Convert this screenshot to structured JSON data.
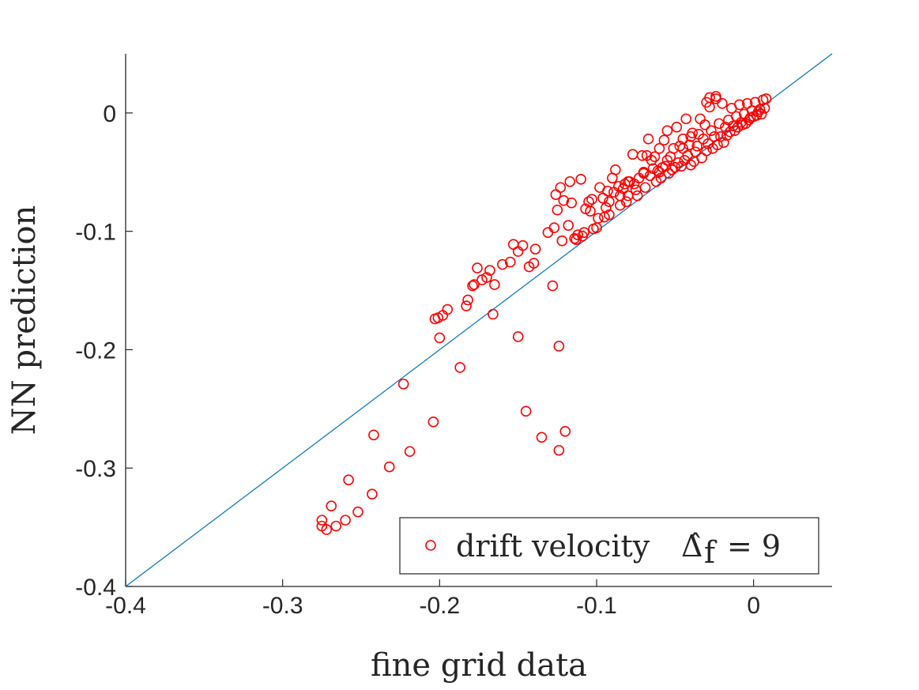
{
  "chart_data": {
    "type": "scatter",
    "title": "",
    "xlabel": "fine grid data",
    "ylabel": "NN prediction",
    "xlim": [
      -0.4,
      0.05
    ],
    "ylim": [
      -0.4,
      0.05
    ],
    "xticks": [
      -0.4,
      -0.3,
      -0.2,
      -0.1,
      0
    ],
    "xtick_labels": [
      "-0.4",
      "-0.3",
      "-0.2",
      "-0.1",
      "0"
    ],
    "yticks": [
      -0.4,
      -0.3,
      -0.2,
      -0.1,
      0
    ],
    "ytick_labels": [
      "-0.4",
      "-0.3",
      "-0.2",
      "-0.1",
      "0"
    ],
    "grid": false,
    "legend": {
      "location": "bottom-right",
      "label": "drift velocity",
      "symbol": "Δ̂",
      "subscript": "f",
      "equation": "= 9"
    },
    "reference_line": {
      "name": "y = x",
      "color": "#0072BD",
      "x": [
        -0.4,
        0.05
      ],
      "y": [
        -0.4,
        0.05
      ]
    },
    "marker_color": "#FF0000",
    "series": [
      {
        "name": "drift velocity Δ̂f = 9",
        "points": [
          [
            -0.275,
            -0.344
          ],
          [
            -0.275,
            -0.349
          ],
          [
            -0.272,
            -0.352
          ],
          [
            -0.269,
            -0.332
          ],
          [
            -0.266,
            -0.349
          ],
          [
            -0.26,
            -0.344
          ],
          [
            -0.258,
            -0.31
          ],
          [
            -0.252,
            -0.337
          ],
          [
            -0.243,
            -0.322
          ],
          [
            -0.242,
            -0.272
          ],
          [
            -0.232,
            -0.299
          ],
          [
            -0.223,
            -0.229
          ],
          [
            -0.219,
            -0.286
          ],
          [
            -0.204,
            -0.261
          ],
          [
            -0.203,
            -0.174
          ],
          [
            -0.201,
            -0.173
          ],
          [
            -0.2,
            -0.19
          ],
          [
            -0.198,
            -0.171
          ],
          [
            -0.195,
            -0.166
          ],
          [
            -0.187,
            -0.215
          ],
          [
            -0.183,
            -0.163
          ],
          [
            -0.182,
            -0.158
          ],
          [
            -0.179,
            -0.146
          ],
          [
            -0.178,
            -0.145
          ],
          [
            -0.176,
            -0.131
          ],
          [
            -0.173,
            -0.141
          ],
          [
            -0.17,
            -0.139
          ],
          [
            -0.168,
            -0.133
          ],
          [
            -0.166,
            -0.17
          ],
          [
            -0.165,
            -0.145
          ],
          [
            -0.16,
            -0.128
          ],
          [
            -0.155,
            -0.126
          ],
          [
            -0.153,
            -0.111
          ],
          [
            -0.15,
            -0.189
          ],
          [
            -0.15,
            -0.117
          ],
          [
            -0.147,
            -0.112
          ],
          [
            -0.145,
            -0.252
          ],
          [
            -0.143,
            -0.13
          ],
          [
            -0.14,
            -0.127
          ],
          [
            -0.139,
            -0.115
          ],
          [
            -0.135,
            -0.274
          ],
          [
            -0.131,
            -0.101
          ],
          [
            -0.128,
            -0.146
          ],
          [
            -0.127,
            -0.097
          ],
          [
            -0.126,
            -0.069
          ],
          [
            -0.125,
            -0.082
          ],
          [
            -0.124,
            -0.197
          ],
          [
            -0.124,
            -0.285
          ],
          [
            -0.123,
            -0.063
          ],
          [
            -0.122,
            -0.108
          ],
          [
            -0.121,
            -0.074
          ],
          [
            -0.12,
            -0.269
          ],
          [
            -0.118,
            -0.095
          ],
          [
            -0.117,
            -0.058
          ],
          [
            -0.116,
            -0.076
          ],
          [
            -0.114,
            -0.106
          ],
          [
            -0.113,
            -0.107
          ],
          [
            -0.112,
            -0.103
          ],
          [
            -0.11,
            -0.056
          ],
          [
            -0.109,
            -0.104
          ],
          [
            -0.108,
            -0.101
          ],
          [
            -0.107,
            -0.081
          ],
          [
            -0.105,
            -0.075
          ],
          [
            -0.104,
            -0.083
          ],
          [
            -0.103,
            -0.073
          ],
          [
            -0.102,
            -0.098
          ],
          [
            -0.1,
            -0.097
          ],
          [
            -0.099,
            -0.089
          ],
          [
            -0.098,
            -0.063
          ],
          [
            -0.096,
            -0.072
          ],
          [
            -0.095,
            -0.088
          ],
          [
            -0.094,
            -0.08
          ],
          [
            -0.093,
            -0.066
          ],
          [
            -0.092,
            -0.075
          ],
          [
            -0.09,
            -0.055
          ],
          [
            -0.089,
            -0.067
          ],
          [
            -0.088,
            -0.048
          ],
          [
            -0.086,
            -0.062
          ],
          [
            -0.085,
            -0.078
          ],
          [
            -0.083,
            -0.064
          ],
          [
            -0.082,
            -0.06
          ],
          [
            -0.081,
            -0.075
          ],
          [
            -0.08,
            -0.058
          ],
          [
            -0.079,
            -0.058
          ],
          [
            -0.077,
            -0.035
          ],
          [
            -0.076,
            -0.06
          ],
          [
            -0.074,
            -0.07
          ],
          [
            -0.073,
            -0.055
          ],
          [
            -0.071,
            -0.036
          ],
          [
            -0.07,
            -0.051
          ],
          [
            -0.069,
            -0.063
          ],
          [
            -0.068,
            -0.036
          ],
          [
            -0.067,
            -0.022
          ],
          [
            -0.066,
            -0.053
          ],
          [
            -0.065,
            -0.04
          ],
          [
            -0.064,
            -0.047
          ],
          [
            -0.063,
            -0.037
          ],
          [
            -0.062,
            -0.058
          ],
          [
            -0.061,
            -0.049
          ],
          [
            -0.06,
            -0.03
          ],
          [
            -0.059,
            -0.055
          ],
          [
            -0.058,
            -0.046
          ],
          [
            -0.057,
            -0.023
          ],
          [
            -0.056,
            -0.045
          ],
          [
            -0.055,
            -0.015
          ],
          [
            -0.054,
            -0.051
          ],
          [
            -0.053,
            -0.037
          ],
          [
            -0.052,
            -0.048
          ],
          [
            -0.051,
            -0.03
          ],
          [
            -0.05,
            -0.046
          ],
          [
            -0.049,
            -0.012
          ],
          [
            -0.048,
            -0.042
          ],
          [
            -0.047,
            -0.028
          ],
          [
            -0.046,
            -0.045
          ],
          [
            -0.045,
            -0.022
          ],
          [
            -0.044,
            -0.04
          ],
          [
            -0.043,
            -0.005
          ],
          [
            -0.042,
            -0.036
          ],
          [
            -0.041,
            -0.027
          ],
          [
            -0.04,
            -0.044
          ],
          [
            -0.039,
            -0.017
          ],
          [
            -0.038,
            -0.041
          ],
          [
            -0.037,
            -0.033
          ],
          [
            -0.036,
            -0.028
          ],
          [
            -0.035,
            -0.018
          ],
          [
            -0.034,
            -0.005
          ],
          [
            -0.033,
            -0.038
          ],
          [
            -0.032,
            -0.022
          ],
          [
            -0.031,
            -0.01
          ],
          [
            -0.03,
            -0.032
          ],
          [
            -0.029,
            -0.026
          ],
          [
            -0.028,
            0.005
          ],
          [
            -0.027,
            -0.015
          ],
          [
            -0.026,
            -0.03
          ],
          [
            -0.025,
            -0.02
          ],
          [
            -0.024,
            0.012
          ],
          [
            -0.023,
            -0.027
          ],
          [
            -0.022,
            -0.009
          ],
          [
            -0.021,
            -0.02
          ],
          [
            -0.02,
            0.008
          ],
          [
            -0.019,
            -0.025
          ],
          [
            -0.018,
            -0.012
          ],
          [
            -0.017,
            -0.019
          ],
          [
            -0.016,
            -0.006
          ],
          [
            -0.015,
            -0.016
          ],
          [
            -0.014,
            0.004
          ],
          [
            -0.013,
            -0.011
          ],
          [
            -0.012,
            -0.015
          ],
          [
            -0.011,
            -0.003
          ],
          [
            -0.01,
            -0.012
          ],
          [
            -0.009,
            0.007
          ],
          [
            -0.008,
            -0.008
          ],
          [
            -0.007,
            -0.01
          ],
          [
            -0.006,
            -0.001
          ],
          [
            -0.005,
            -0.009
          ],
          [
            -0.004,
            0.008
          ],
          [
            -0.003,
            -0.006
          ],
          [
            -0.002,
            -0.004
          ],
          [
            -0.001,
            0.002
          ],
          [
            0,
            -0.003
          ],
          [
            0.001,
            0.009
          ],
          [
            0.002,
            -0.002
          ],
          [
            0.003,
            0.001
          ],
          [
            0.004,
            0.003
          ],
          [
            0.005,
            -0.001
          ],
          [
            0.006,
            0.011
          ],
          [
            0.007,
            0.004
          ],
          [
            0.008,
            0.012
          ],
          [
            -0.028,
            0.013
          ],
          [
            -0.024,
            0.014
          ],
          [
            -0.03,
            0.009
          ],
          [
            -0.04,
            -0.02
          ],
          [
            -0.045,
            -0.03
          ],
          [
            -0.055,
            -0.04
          ],
          [
            -0.06,
            -0.05
          ],
          [
            -0.07,
            -0.05
          ],
          [
            -0.075,
            -0.065
          ],
          [
            -0.08,
            -0.07
          ],
          [
            -0.085,
            -0.07
          ],
          [
            -0.092,
            -0.086
          ]
        ]
      }
    ]
  }
}
